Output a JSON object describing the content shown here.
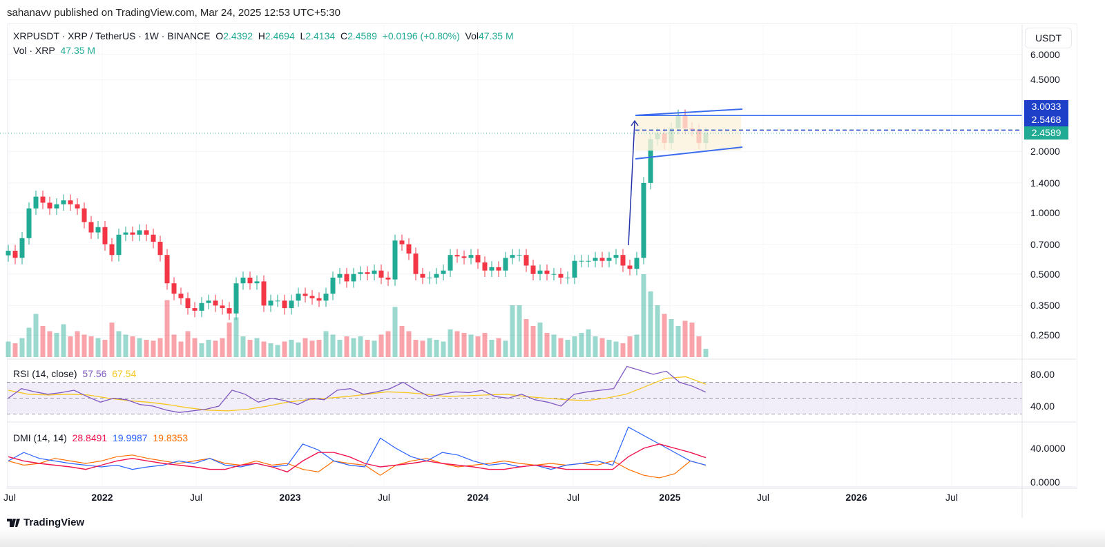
{
  "header": {
    "published": "sahanavv published on TradingView.com, Mar 24, 2025 12:53 UTC+5:30"
  },
  "legend": {
    "symbol": "XRPUSDT · XRP / TetherUS · 1W · BINANCE",
    "o_label": "O",
    "o": "2.4392",
    "h_label": "H",
    "h": "2.4694",
    "l_label": "L",
    "l": "2.4134",
    "c_label": "C",
    "c": "2.4589",
    "change": "+0.0196 (+0.80%)",
    "vol_label": "Vol",
    "vol": "47.35 M",
    "vol_series_label": "Vol · XRP",
    "vol_series_value": "47.35 M"
  },
  "price_axis": {
    "currency": "USDT",
    "labels": [
      "6.0000",
      "4.5000",
      "2.0000",
      "1.4000",
      "1.0000",
      "0.7000",
      "0.5000",
      "0.3500",
      "0.2500"
    ],
    "tags": [
      {
        "text": "3.0033",
        "color": "#1e40c8"
      },
      {
        "text": "2.5468",
        "color": "#1e40c8"
      },
      {
        "text": "2.4589",
        "color": "#22ab94"
      }
    ]
  },
  "rsi": {
    "label": "RSI (14, close)",
    "value": "57.56",
    "ma_value": "67.54",
    "axis": [
      "80.00",
      "40.00"
    ]
  },
  "dmi": {
    "label": "DMI (14, 14)",
    "adx": "28.8491",
    "plus_di": "19.9987",
    "minus_di": "19.8353",
    "axis": [
      "40.0000",
      "0.0000"
    ]
  },
  "time_axis": [
    {
      "label": "Jul",
      "year": false
    },
    {
      "label": "2022",
      "year": true
    },
    {
      "label": "Jul",
      "year": false
    },
    {
      "label": "2023",
      "year": true
    },
    {
      "label": "Jul",
      "year": false
    },
    {
      "label": "2024",
      "year": true
    },
    {
      "label": "Jul",
      "year": false
    },
    {
      "label": "2025",
      "year": true
    },
    {
      "label": "Jul",
      "year": false
    },
    {
      "label": "2026",
      "year": true
    },
    {
      "label": "Jul",
      "year": false
    }
  ],
  "footer": {
    "brand": "TradingView"
  },
  "colors": {
    "up": "#22ab94",
    "down": "#f23645",
    "rsi": "#7e57c2",
    "rsi_ma": "#f7c61f",
    "adx": "#f0134d",
    "plus_di": "#2962ff",
    "minus_di": "#ff6d00",
    "drawing": "#3b6cf0"
  },
  "chart_data": {
    "type": "candlestick",
    "title": "XRPUSDT · XRP / TetherUS · 1W · BINANCE",
    "scale": "log",
    "ylim": [
      0.22,
      6.5
    ],
    "x_range": [
      "2021-06",
      "2026-11"
    ],
    "closes": [
      0.65,
      0.6,
      0.75,
      1.05,
      1.2,
      1.12,
      1.05,
      1.1,
      1.15,
      1.1,
      1.05,
      0.9,
      0.8,
      0.85,
      0.7,
      0.62,
      0.78,
      0.8,
      0.78,
      0.82,
      0.78,
      0.72,
      0.62,
      0.45,
      0.4,
      0.38,
      0.34,
      0.33,
      0.36,
      0.37,
      0.35,
      0.34,
      0.32,
      0.45,
      0.48,
      0.45,
      0.46,
      0.35,
      0.37,
      0.37,
      0.34,
      0.37,
      0.4,
      0.39,
      0.38,
      0.37,
      0.4,
      0.48,
      0.5,
      0.46,
      0.5,
      0.51,
      0.5,
      0.52,
      0.48,
      0.47,
      0.73,
      0.7,
      0.63,
      0.5,
      0.48,
      0.48,
      0.5,
      0.52,
      0.62,
      0.61,
      0.6,
      0.62,
      0.57,
      0.52,
      0.54,
      0.52,
      0.6,
      0.62,
      0.62,
      0.55,
      0.5,
      0.52,
      0.5,
      0.5,
      0.48,
      0.48,
      0.58,
      0.58,
      0.58,
      0.6,
      0.58,
      0.6,
      0.62,
      0.55,
      0.53,
      0.6,
      1.4,
      2.3,
      2.45,
      2.2,
      2.6,
      3.0,
      2.6,
      2.55,
      2.2,
      2.4589
    ],
    "volume_m": [
      90,
      80,
      110,
      170,
      250,
      180,
      150,
      140,
      190,
      120,
      150,
      130,
      120,
      110,
      100,
      200,
      150,
      130,
      120,
      110,
      100,
      95,
      110,
      330,
      130,
      90,
      150,
      110,
      80,
      100,
      95,
      110,
      200,
      230,
      120,
      100,
      110,
      90,
      80,
      70,
      90,
      100,
      85,
      110,
      95,
      100,
      150,
      130,
      100,
      120,
      110,
      120,
      100,
      95,
      130,
      150,
      290,
      180,
      150,
      100,
      95,
      110,
      100,
      90,
      160,
      150,
      140,
      130,
      120,
      140,
      100,
      110,
      95,
      300,
      300,
      220,
      180,
      200,
      140,
      130,
      110,
      100,
      120,
      140,
      160,
      120,
      110,
      100,
      90,
      80,
      120,
      130,
      480,
      380,
      300,
      250,
      220,
      180,
      210,
      200,
      120,
      47.35
    ],
    "rsi": [
      50,
      62,
      58,
      55,
      57,
      60,
      52,
      45,
      50,
      48,
      42,
      40,
      35,
      32,
      34,
      36,
      40,
      60,
      55,
      45,
      50,
      47,
      42,
      50,
      48,
      60,
      62,
      55,
      58,
      62,
      70,
      60,
      52,
      55,
      58,
      57,
      60,
      52,
      50,
      55,
      48,
      45,
      40,
      55,
      58,
      60,
      62,
      90,
      85,
      80,
      84,
      70,
      65,
      57.56
    ],
    "rsi_ma": [
      60,
      55,
      54,
      55,
      54,
      50,
      47,
      45,
      42,
      38,
      35,
      34,
      36,
      40,
      45,
      48,
      50,
      52,
      55,
      58,
      57,
      55,
      52,
      53,
      54,
      55,
      52,
      50,
      48,
      47,
      50,
      55,
      65,
      75,
      77,
      67.54
    ],
    "plus_di": [
      25,
      35,
      28,
      25,
      22,
      20,
      18,
      20,
      15,
      18,
      20,
      25,
      22,
      28,
      20,
      18,
      22,
      18,
      20,
      45,
      38,
      25,
      20,
      18,
      52,
      40,
      30,
      25,
      35,
      32,
      25,
      20,
      22,
      18,
      20,
      15,
      20,
      22,
      25,
      20,
      65,
      55,
      45,
      35,
      25,
      19.9987
    ],
    "minus_di": [
      25,
      20,
      22,
      28,
      25,
      22,
      25,
      30,
      32,
      28,
      25,
      22,
      25,
      28,
      22,
      20,
      25,
      20,
      22,
      15,
      12,
      25,
      22,
      20,
      8,
      20,
      25,
      28,
      22,
      18,
      20,
      22,
      25,
      22,
      20,
      22,
      20,
      22,
      20,
      25,
      15,
      8,
      5,
      10,
      25,
      19.8353
    ],
    "adx": [
      30,
      25,
      22,
      20,
      18,
      15,
      20,
      25,
      28,
      25,
      22,
      20,
      18,
      15,
      15,
      20,
      22,
      18,
      12,
      25,
      35,
      35,
      30,
      22,
      18,
      20,
      22,
      25,
      22,
      20,
      18,
      15,
      15,
      18,
      20,
      18,
      15,
      15,
      15,
      15,
      30,
      40,
      45,
      40,
      35,
      28.8491
    ],
    "rsi_levels": [
      70,
      50,
      30
    ],
    "horizontal_lines": [
      3.0033,
      2.5468,
      2.4589
    ]
  }
}
